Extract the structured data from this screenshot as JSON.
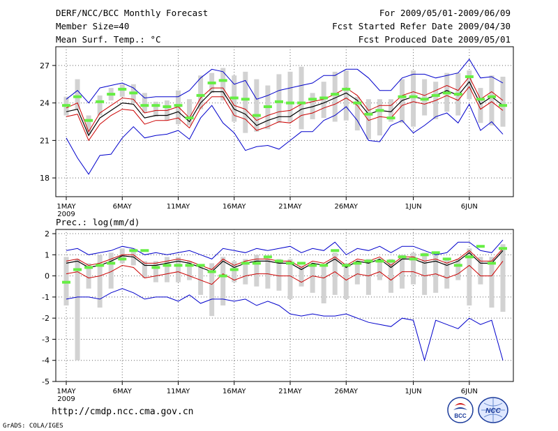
{
  "header": {
    "title": "DERF/NCC/BCC Monthly Forecast",
    "member_size": "Member Size=40",
    "variable1": "Mean Surf. Temp.: °C",
    "period": "For 2009/05/01-2009/06/09",
    "started": "Fcst Started Refer Date 2009/04/30",
    "produced": "Fcst Produced Date 2009/05/01"
  },
  "footer": {
    "url": "http://cmdp.ncc.cma.gov.cn",
    "grads": "GrADS: COLA/IGES",
    "logo1_text": "BCC",
    "logo2_text": "NCC"
  },
  "colors": {
    "upper_env": "#0000cc",
    "lower_env": "#0000cc",
    "mean": "#000000",
    "spread": "#cc0000",
    "obs": "#66ee44",
    "box": "#d2d2d2"
  },
  "chart_data": [
    {
      "type": "line",
      "name": "temperature",
      "title": "Mean Surf. Temp.: °C",
      "x": [
        1,
        2,
        3,
        4,
        5,
        6,
        7,
        8,
        9,
        10,
        11,
        12,
        13,
        14,
        15,
        16,
        17,
        18,
        19,
        20,
        21,
        22,
        23,
        24,
        25,
        26,
        27,
        28,
        29,
        30,
        31,
        32,
        33,
        34,
        35,
        36,
        37,
        38,
        39,
        40
      ],
      "xlim": [
        0,
        40
      ],
      "ylim": [
        16.5,
        28.5
      ],
      "yticks": [
        18,
        21,
        24,
        27
      ],
      "xtick_labels": [
        "1MAY",
        "6MAY",
        "11MAY",
        "16MAY",
        "21MAY",
        "26MAY",
        "1JUN",
        "6JUN"
      ],
      "xtick_positions": [
        1,
        6,
        11,
        16,
        21,
        26,
        32,
        37
      ],
      "year_label": "2009",
      "series": [
        {
          "name": "upper",
          "values": [
            24.3,
            25.0,
            24.0,
            25.2,
            25.4,
            25.6,
            25.2,
            24.4,
            24.5,
            24.5,
            24.5,
            25.0,
            26.0,
            26.7,
            26.5,
            25.5,
            25.8,
            24.3,
            24.6,
            25.0,
            25.2,
            25.4,
            25.6,
            26.2,
            26.2,
            26.7,
            26.7,
            26.0,
            25.0,
            25.0,
            26.0,
            26.3,
            26.3,
            26.0,
            26.2,
            26.4,
            27.5,
            26.0,
            26.1,
            25.6
          ]
        },
        {
          "name": "spread_hi",
          "values": [
            23.6,
            24.0,
            21.7,
            23.2,
            23.8,
            24.4,
            24.3,
            23.2,
            23.4,
            23.4,
            23.7,
            22.8,
            24.4,
            25.2,
            25.2,
            23.8,
            23.5,
            22.6,
            23.0,
            23.3,
            23.4,
            23.9,
            24.1,
            24.3,
            24.7,
            25.2,
            24.6,
            23.4,
            23.8,
            23.8,
            24.6,
            24.9,
            24.6,
            25.0,
            25.4,
            25.0,
            26.1,
            24.3,
            24.9,
            24.2
          ]
        },
        {
          "name": "mean",
          "values": [
            23.3,
            23.5,
            21.4,
            22.8,
            23.4,
            24.0,
            23.9,
            22.8,
            23.0,
            23.0,
            23.3,
            22.5,
            24.0,
            24.9,
            24.9,
            23.5,
            23.1,
            22.2,
            22.6,
            22.9,
            22.9,
            23.5,
            23.7,
            24.0,
            24.4,
            24.8,
            24.2,
            23.1,
            23.4,
            23.3,
            24.2,
            24.5,
            24.3,
            24.6,
            25.0,
            24.6,
            25.7,
            23.9,
            24.5,
            23.8
          ]
        },
        {
          "name": "spread_lo",
          "values": [
            22.9,
            23.1,
            21.0,
            22.3,
            23.0,
            23.5,
            23.4,
            22.3,
            22.6,
            22.6,
            22.8,
            22.0,
            23.6,
            24.5,
            24.5,
            23.0,
            22.7,
            21.8,
            22.1,
            22.5,
            22.4,
            23.0,
            23.2,
            23.6,
            23.9,
            24.4,
            23.8,
            22.6,
            22.9,
            22.8,
            23.8,
            24.1,
            23.9,
            24.2,
            24.6,
            24.2,
            25.3,
            23.5,
            24.1,
            23.4
          ]
        },
        {
          "name": "lower",
          "values": [
            21.2,
            19.6,
            18.3,
            19.8,
            19.9,
            21.2,
            22.1,
            21.2,
            21.4,
            21.5,
            21.8,
            21.1,
            22.8,
            23.8,
            22.4,
            21.6,
            20.2,
            20.5,
            20.6,
            20.3,
            21.0,
            21.7,
            21.7,
            22.6,
            23.0,
            23.7,
            22.6,
            21.0,
            20.9,
            22.2,
            22.6,
            21.6,
            22.2,
            22.9,
            23.2,
            22.4,
            23.9,
            21.8,
            22.5,
            21.5
          ]
        },
        {
          "name": "obs",
          "values": [
            23.8,
            24.5,
            22.6,
            24.1,
            24.7,
            25.1,
            24.8,
            23.8,
            23.8,
            23.7,
            23.8,
            22.8,
            24.6,
            25.6,
            25.8,
            24.4,
            24.3,
            23.0,
            23.7,
            24.1,
            24.0,
            24.0,
            24.3,
            24.4,
            24.7,
            25.1,
            24.0,
            23.1,
            23.4,
            22.8,
            24.5,
            24.5,
            24.3,
            24.6,
            24.8,
            24.7,
            26.1,
            24.3,
            24.5,
            23.8
          ]
        }
      ],
      "boxes": [
        [
          23.0,
          24.5
        ],
        [
          23.5,
          25.9
        ],
        [
          21.5,
          23.0
        ],
        [
          23.0,
          24.6
        ],
        [
          24.2,
          25.2
        ],
        [
          24.5,
          25.5
        ],
        [
          24.0,
          25.5
        ],
        [
          23.2,
          24.8
        ],
        [
          22.9,
          24.1
        ],
        [
          22.6,
          24.2
        ],
        [
          22.3,
          25.0
        ],
        [
          22.2,
          24.3
        ],
        [
          23.5,
          26.2
        ],
        [
          24.8,
          26.4
        ],
        [
          24.2,
          26.8
        ],
        [
          22.5,
          26.2
        ],
        [
          21.6,
          26.5
        ],
        [
          21.7,
          25.9
        ],
        [
          21.9,
          25.4
        ],
        [
          22.4,
          26.3
        ],
        [
          22.5,
          26.5
        ],
        [
          21.9,
          26.9
        ],
        [
          22.7,
          24.8
        ],
        [
          22.8,
          25.7
        ],
        [
          22.5,
          26.5
        ],
        [
          22.6,
          26.6
        ],
        [
          21.8,
          24.5
        ],
        [
          21.1,
          24.3
        ],
        [
          21.4,
          24.3
        ],
        [
          22.5,
          24.3
        ],
        [
          22.4,
          25.9
        ],
        [
          22.1,
          26.6
        ],
        [
          23.0,
          25.9
        ],
        [
          22.7,
          25.7
        ],
        [
          23.3,
          26.4
        ],
        [
          23.0,
          26.4
        ],
        [
          24.3,
          26.6
        ],
        [
          22.4,
          25.2
        ],
        [
          22.2,
          26.2
        ],
        [
          22.1,
          26.1
        ]
      ]
    },
    {
      "type": "line",
      "name": "precipitation",
      "title": "Prec.: log(mm/d)",
      "x": [
        1,
        2,
        3,
        4,
        5,
        6,
        7,
        8,
        9,
        10,
        11,
        12,
        13,
        14,
        15,
        16,
        17,
        18,
        19,
        20,
        21,
        22,
        23,
        24,
        25,
        26,
        27,
        28,
        29,
        30,
        31,
        32,
        33,
        34,
        35,
        36,
        37,
        38,
        39,
        40
      ],
      "xlim": [
        0,
        40
      ],
      "ylim": [
        -5,
        2.2
      ],
      "yticks": [
        -5,
        -4,
        -3,
        -2,
        -1,
        0,
        1,
        2
      ],
      "xtick_labels": [
        "1MAY",
        "6MAY",
        "11MAY",
        "16MAY",
        "21MAY",
        "26MAY",
        "1JUN",
        "6JUN"
      ],
      "xtick_positions": [
        1,
        6,
        11,
        16,
        21,
        26,
        32,
        37
      ],
      "year_label": "2009",
      "series": [
        {
          "name": "upper",
          "values": [
            1.2,
            1.3,
            1.0,
            1.1,
            1.2,
            1.4,
            1.3,
            1.0,
            1.1,
            1.0,
            1.1,
            1.2,
            1.0,
            0.8,
            1.3,
            1.2,
            1.1,
            1.3,
            1.2,
            1.3,
            1.4,
            1.1,
            1.3,
            1.2,
            1.6,
            1.0,
            1.3,
            1.2,
            1.4,
            1.1,
            1.4,
            1.4,
            1.2,
            1.0,
            1.1,
            1.6,
            1.6,
            1.2,
            1.1,
            1.7
          ]
        },
        {
          "name": "spread_hi",
          "values": [
            0.7,
            0.8,
            0.5,
            0.6,
            0.8,
            1.0,
            1.0,
            0.6,
            0.6,
            0.7,
            0.8,
            0.7,
            0.5,
            0.3,
            0.8,
            0.5,
            0.7,
            0.8,
            0.8,
            0.7,
            0.7,
            0.4,
            0.7,
            0.6,
            0.9,
            0.5,
            0.8,
            0.7,
            0.9,
            0.5,
            0.9,
            0.9,
            0.7,
            0.8,
            0.6,
            0.8,
            1.2,
            0.7,
            0.7,
            1.3
          ]
        },
        {
          "name": "mean",
          "values": [
            0.6,
            0.7,
            0.4,
            0.5,
            0.7,
            0.95,
            0.9,
            0.5,
            0.5,
            0.6,
            0.7,
            0.6,
            0.4,
            0.2,
            0.7,
            0.4,
            0.6,
            0.7,
            0.7,
            0.6,
            0.6,
            0.3,
            0.6,
            0.5,
            0.8,
            0.4,
            0.7,
            0.6,
            0.8,
            0.4,
            0.8,
            0.8,
            0.6,
            0.7,
            0.5,
            0.7,
            1.1,
            0.6,
            0.6,
            1.2
          ]
        },
        {
          "name": "spread_lo",
          "values": [
            0.1,
            0.2,
            -0.1,
            0.0,
            0.2,
            0.5,
            0.4,
            -0.1,
            0.0,
            0.1,
            0.2,
            0.0,
            -0.2,
            -0.4,
            0.1,
            -0.2,
            0.0,
            0.1,
            0.1,
            0.0,
            0.0,
            -0.3,
            0.0,
            -0.1,
            0.2,
            -0.2,
            0.1,
            0.0,
            0.2,
            -0.2,
            0.2,
            0.2,
            0.0,
            0.1,
            -0.1,
            0.1,
            0.5,
            0.0,
            0.0,
            0.7
          ]
        },
        {
          "name": "lower",
          "values": [
            -1.1,
            -1.0,
            -1.0,
            -1.1,
            -0.8,
            -0.6,
            -0.8,
            -1.1,
            -1.0,
            -1.0,
            -1.2,
            -0.9,
            -1.3,
            -1.1,
            -1.1,
            -1.2,
            -1.1,
            -1.4,
            -1.2,
            -1.4,
            -1.8,
            -1.9,
            -1.8,
            -1.9,
            -1.9,
            -1.8,
            -2.0,
            -2.2,
            -2.3,
            -2.4,
            -2.0,
            -2.1,
            -4.0,
            -2.1,
            -2.3,
            -2.5,
            -2.0,
            -2.3,
            -2.1,
            -4.0
          ]
        },
        {
          "name": "obs",
          "values": [
            -0.3,
            0.3,
            0.4,
            0.5,
            0.6,
            0.8,
            1.2,
            1.2,
            0.4,
            0.5,
            0.5,
            0.5,
            0.5,
            0.2,
            0.0,
            0.3,
            0.6,
            0.6,
            0.9,
            0.7,
            0.6,
            0.6,
            0.5,
            0.5,
            1.2,
            0.5,
            0.6,
            0.7,
            0.7,
            0.7,
            0.9,
            0.8,
            1.0,
            1.1,
            0.8,
            0.5,
            0.9,
            1.4,
            0.6,
            1.3
          ]
        }
      ],
      "boxes": [
        [
          -1.4,
          0.9
        ],
        [
          -4.0,
          0.8
        ],
        [
          -0.6,
          0.6
        ],
        [
          -1.5,
          1.0
        ],
        [
          -0.6,
          1.1
        ],
        [
          0.6,
          1.3
        ],
        [
          0.5,
          1.3
        ],
        [
          -0.1,
          0.7
        ],
        [
          -0.3,
          0.7
        ],
        [
          -0.3,
          0.9
        ],
        [
          -0.3,
          0.9
        ],
        [
          -0.2,
          0.7
        ],
        [
          -0.9,
          0.5
        ],
        [
          -1.9,
          0.6
        ],
        [
          -1.4,
          0.9
        ],
        [
          -0.3,
          0.7
        ],
        [
          -0.4,
          0.8
        ],
        [
          -0.5,
          1.0
        ],
        [
          -0.6,
          0.8
        ],
        [
          -0.7,
          0.8
        ],
        [
          -1.1,
          0.8
        ],
        [
          -0.5,
          0.5
        ],
        [
          -0.8,
          0.6
        ],
        [
          -1.3,
          0.5
        ],
        [
          -0.9,
          1.1
        ],
        [
          -1.1,
          0.6
        ],
        [
          -0.4,
          0.7
        ],
        [
          -0.9,
          0.8
        ],
        [
          -0.2,
          0.8
        ],
        [
          -0.8,
          0.8
        ],
        [
          -0.6,
          1.0
        ],
        [
          -0.4,
          1.1
        ],
        [
          -0.9,
          1.1
        ],
        [
          -0.8,
          1.0
        ],
        [
          -0.6,
          0.8
        ],
        [
          -0.2,
          0.8
        ],
        [
          -1.4,
          1.3
        ],
        [
          -0.4,
          0.9
        ],
        [
          -1.5,
          0.9
        ],
        [
          -1.7,
          1.5
        ]
      ]
    }
  ]
}
